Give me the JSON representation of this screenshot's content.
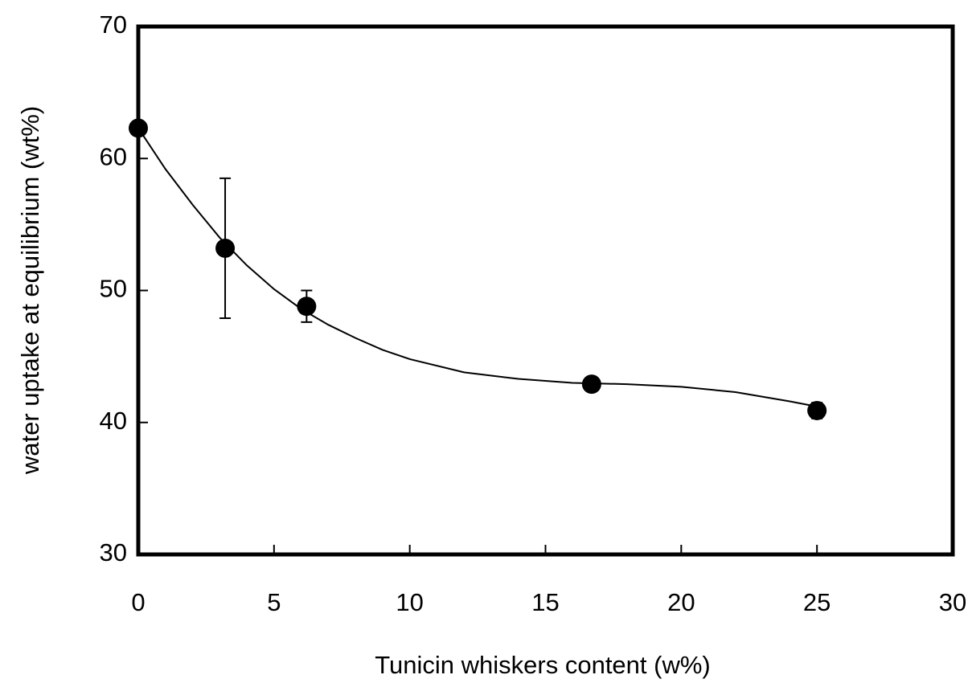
{
  "chart_data": {
    "type": "scatter",
    "xlabel": "Tunicin whiskers content (w%)",
    "ylabel": "water uptake at equilibrium (wt%)",
    "series": [
      {
        "x": [
          0,
          3.2,
          6.2,
          16.7,
          25
        ],
        "values": [
          62.3,
          53.2,
          48.8,
          42.9,
          40.9
        ],
        "error": [
          null,
          5.3,
          1.2,
          null,
          0.6
        ],
        "color": "#000000"
      }
    ],
    "fit": {
      "x": [
        0,
        1,
        2,
        3,
        4,
        5,
        6,
        7,
        8,
        9,
        10,
        12,
        14,
        16,
        18,
        20,
        22,
        24,
        25
      ],
      "values": [
        62.3,
        59.2,
        56.5,
        54.0,
        51.9,
        50.1,
        48.6,
        47.4,
        46.4,
        45.5,
        44.8,
        43.8,
        43.3,
        43.0,
        42.9,
        42.7,
        42.3,
        41.6,
        41.2
      ]
    },
    "xlim": [
      0,
      30
    ],
    "xticks": [
      0,
      5,
      10,
      15,
      20,
      25,
      30
    ],
    "ylim": [
      30,
      70
    ],
    "yticks": [
      30,
      40,
      50,
      60,
      70
    ]
  }
}
